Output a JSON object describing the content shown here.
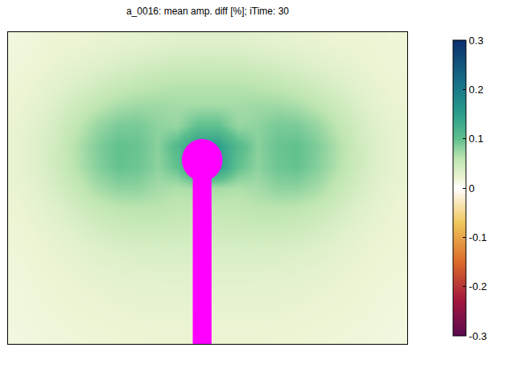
{
  "chart_data": {
    "type": "heatmap",
    "title": "a_0016: mean amp. diff [%]; iTime: 30",
    "tick_labels": false,
    "colorbar_range": [
      -0.3,
      0.3
    ],
    "colorbar_ticks": [
      -0.3,
      -0.2,
      -0.1,
      0,
      0.1,
      0.2,
      0.3
    ],
    "cells": [
      [
        0.015,
        0.017,
        0.02,
        0.02,
        0.022,
        0.024,
        0.026,
        0.028,
        0.03,
        0.03,
        0.03,
        0.03,
        0.028,
        0.026,
        0.024,
        0.022,
        0.02,
        0.02,
        0.018,
        0.017
      ],
      [
        0.016,
        0.018,
        0.022,
        0.026,
        0.03,
        0.034,
        0.038,
        0.042,
        0.045,
        0.046,
        0.046,
        0.045,
        0.042,
        0.038,
        0.034,
        0.03,
        0.026,
        0.022,
        0.019,
        0.017
      ],
      [
        0.018,
        0.022,
        0.028,
        0.034,
        0.042,
        0.05,
        0.056,
        0.06,
        0.062,
        0.062,
        0.062,
        0.062,
        0.06,
        0.056,
        0.05,
        0.042,
        0.034,
        0.028,
        0.022,
        0.019
      ],
      [
        0.02,
        0.026,
        0.034,
        0.046,
        0.058,
        0.068,
        0.072,
        0.072,
        0.07,
        0.07,
        0.07,
        0.07,
        0.072,
        0.072,
        0.068,
        0.058,
        0.046,
        0.034,
        0.026,
        0.021
      ],
      [
        0.022,
        0.03,
        0.042,
        0.058,
        0.076,
        0.088,
        0.09,
        0.08,
        0.076,
        0.1,
        0.1,
        0.076,
        0.08,
        0.09,
        0.088,
        0.076,
        0.058,
        0.042,
        0.03,
        0.023
      ],
      [
        0.024,
        0.032,
        0.046,
        0.066,
        0.086,
        0.1,
        0.096,
        0.082,
        0.11,
        0.15,
        0.15,
        0.11,
        0.082,
        0.096,
        0.1,
        0.086,
        0.066,
        0.046,
        0.032,
        0.024
      ],
      [
        0.024,
        0.032,
        0.046,
        0.064,
        0.084,
        0.098,
        0.094,
        0.08,
        0.1,
        0.15,
        0.15,
        0.1,
        0.08,
        0.094,
        0.098,
        0.084,
        0.064,
        0.046,
        0.032,
        0.024
      ],
      [
        0.022,
        0.028,
        0.04,
        0.054,
        0.07,
        0.08,
        0.08,
        0.07,
        0.066,
        0.07,
        0.07,
        0.066,
        0.07,
        0.08,
        0.08,
        0.07,
        0.054,
        0.04,
        0.028,
        0.022
      ],
      [
        0.02,
        0.025,
        0.032,
        0.042,
        0.052,
        0.058,
        0.06,
        0.06,
        0.056,
        0.055,
        0.055,
        0.056,
        0.06,
        0.06,
        0.058,
        0.052,
        0.042,
        0.032,
        0.025,
        0.02
      ],
      [
        0.018,
        0.022,
        0.027,
        0.033,
        0.04,
        0.045,
        0.048,
        0.048,
        0.047,
        0.046,
        0.046,
        0.047,
        0.048,
        0.048,
        0.045,
        0.04,
        0.033,
        0.027,
        0.022,
        0.019
      ],
      [
        0.017,
        0.02,
        0.023,
        0.027,
        0.031,
        0.034,
        0.036,
        0.037,
        0.037,
        0.036,
        0.036,
        0.037,
        0.037,
        0.036,
        0.034,
        0.031,
        0.027,
        0.023,
        0.02,
        0.018
      ],
      [
        0.016,
        0.018,
        0.021,
        0.023,
        0.026,
        0.028,
        0.029,
        0.03,
        0.03,
        0.03,
        0.03,
        0.03,
        0.03,
        0.029,
        0.028,
        0.026,
        0.023,
        0.021,
        0.018,
        0.017
      ],
      [
        0.015,
        0.017,
        0.019,
        0.021,
        0.022,
        0.024,
        0.025,
        0.025,
        0.026,
        0.026,
        0.026,
        0.026,
        0.025,
        0.025,
        0.024,
        0.022,
        0.021,
        0.019,
        0.017,
        0.016
      ],
      [
        0.015,
        0.016,
        0.018,
        0.019,
        0.02,
        0.021,
        0.022,
        0.022,
        0.022,
        0.022,
        0.022,
        0.022,
        0.022,
        0.022,
        0.021,
        0.02,
        0.019,
        0.018,
        0.016,
        0.015
      ],
      [
        0.014,
        0.015,
        0.016,
        0.017,
        0.018,
        0.019,
        0.019,
        0.02,
        0.02,
        0.02,
        0.02,
        0.02,
        0.02,
        0.019,
        0.019,
        0.018,
        0.017,
        0.016,
        0.015,
        0.014
      ]
    ]
  }
}
